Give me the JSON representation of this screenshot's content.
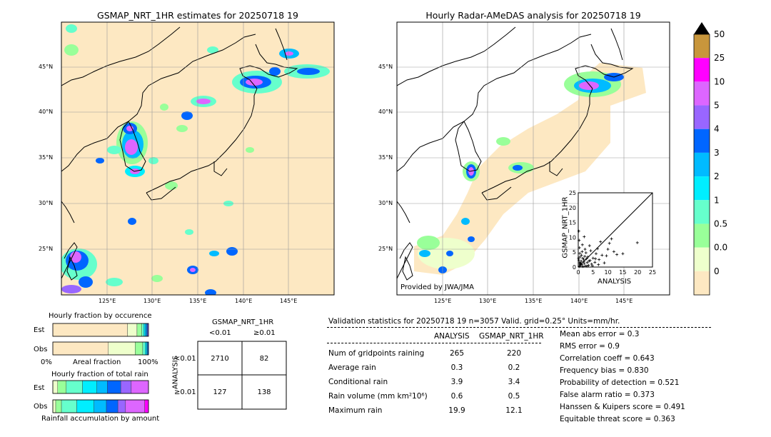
{
  "left_map": {
    "title": "GSMAP_NRT_1HR estimates for 20250718 19",
    "lat_labels": [
      "45°N",
      "40°N",
      "35°N",
      "30°N",
      "25°N"
    ],
    "lon_labels": [
      "125°E",
      "130°E",
      "135°E",
      "140°E",
      "145°E"
    ]
  },
  "right_map": {
    "title": "Hourly Radar-AMeDAS analysis for 20250718 19",
    "lat_labels": [
      "45°N",
      "40°N",
      "35°N",
      "30°N",
      "25°N"
    ],
    "lon_labels": [
      "125°E",
      "130°E",
      "135°E",
      "140°E",
      "145°E"
    ],
    "credit": "Provided by JWA/JMA"
  },
  "colorbar": {
    "labels": [
      "50",
      "25",
      "10",
      "5",
      "4",
      "3",
      "2",
      "1",
      "0.5",
      "0.01",
      "0"
    ],
    "colors": [
      "#c8963c",
      "#ff00ff",
      "#dd66ff",
      "#9966ff",
      "#0066ff",
      "#00bbff",
      "#00eeff",
      "#66ffcc",
      "#99ff99",
      "#eeffcc",
      "#fde8c2"
    ]
  },
  "chart_data": [
    {
      "type": "scatter",
      "xlabel": "ANALYSIS",
      "ylabel": "GSMAP_NRT_1HR",
      "xlim": [
        0,
        25
      ],
      "ylim": [
        0,
        25
      ],
      "xticks": [
        "0",
        "5",
        "10",
        "15",
        "20",
        "25"
      ],
      "yticks": [
        "0",
        "5",
        "10",
        "15",
        "20",
        "25"
      ],
      "points": [
        [
          0.3,
          0.2
        ],
        [
          0.5,
          1.1
        ],
        [
          0.8,
          0.5
        ],
        [
          1.0,
          2.0
        ],
        [
          1.2,
          0.8
        ],
        [
          1.5,
          3.0
        ],
        [
          0.4,
          1.6
        ],
        [
          2.0,
          1.2
        ],
        [
          2.4,
          0.4
        ],
        [
          1.8,
          2.6
        ],
        [
          0.6,
          3.4
        ],
        [
          3.0,
          1.5
        ],
        [
          2.8,
          2.8
        ],
        [
          3.5,
          0.6
        ],
        [
          1.1,
          4.0
        ],
        [
          4.0,
          2.2
        ],
        [
          0.2,
          2.4
        ],
        [
          2.2,
          3.6
        ],
        [
          0.9,
          1.4
        ],
        [
          1.6,
          0.2
        ],
        [
          3.2,
          3.4
        ],
        [
          4.5,
          1.0
        ],
        [
          0.5,
          4.6
        ],
        [
          5.0,
          3.0
        ],
        [
          2.6,
          4.8
        ],
        [
          5.6,
          1.6
        ],
        [
          6.0,
          4.5
        ],
        [
          4.2,
          5.5
        ],
        [
          1.3,
          5.2
        ],
        [
          7.0,
          2.5
        ],
        [
          6.5,
          6.2
        ],
        [
          3.8,
          7.2
        ],
        [
          8.0,
          4.0
        ],
        [
          9.5,
          3.8
        ],
        [
          10.0,
          6.0
        ],
        [
          12.0,
          5.2
        ],
        [
          7.5,
          8.5
        ],
        [
          13.0,
          4.2
        ],
        [
          0.3,
          9.0
        ],
        [
          2.0,
          10.2
        ],
        [
          15.0,
          4.5
        ],
        [
          19.9,
          8.2
        ],
        [
          8.8,
          1.4
        ],
        [
          0.7,
          0.9
        ],
        [
          1.9,
          1.9
        ],
        [
          2.9,
          0.3
        ],
        [
          3.6,
          2.0
        ],
        [
          0.1,
          3.0
        ],
        [
          4.8,
          0.4
        ],
        [
          5.8,
          2.8
        ],
        [
          10.5,
          8.0
        ],
        [
          11.2,
          9.5
        ],
        [
          6.8,
          0.8
        ],
        [
          0.4,
          6.5
        ],
        [
          1.4,
          7.5
        ],
        [
          2.3,
          6.0
        ],
        [
          0.2,
          12.1
        ]
      ]
    },
    {
      "type": "bar",
      "title": "Hourly fraction by occurence",
      "categories": [
        "Est",
        "Obs"
      ],
      "xlabel": "Areal fraction",
      "xticks": [
        "0%",
        "100%"
      ],
      "segments": [
        [
          {
            "v": 0.78,
            "c": "#fde8c2"
          },
          {
            "v": 0.1,
            "c": "#eeffcc"
          },
          {
            "v": 0.05,
            "c": "#99ff99"
          },
          {
            "v": 0.02,
            "c": "#66ffcc"
          },
          {
            "v": 0.015,
            "c": "#00eeff"
          },
          {
            "v": 0.015,
            "c": "#00bbff"
          },
          {
            "v": 0.01,
            "c": "#0066ff"
          },
          {
            "v": 0.01,
            "c": "#9966ff"
          }
        ],
        [
          {
            "v": 0.58,
            "c": "#fde8c2"
          },
          {
            "v": 0.28,
            "c": "#eeffcc"
          },
          {
            "v": 0.08,
            "c": "#99ff99"
          },
          {
            "v": 0.025,
            "c": "#66ffcc"
          },
          {
            "v": 0.015,
            "c": "#00eeff"
          },
          {
            "v": 0.01,
            "c": "#00bbff"
          },
          {
            "v": 0.01,
            "c": "#0066ff"
          }
        ]
      ]
    },
    {
      "type": "bar",
      "title": "Hourly fraction of total rain",
      "categories": [
        "Est",
        "Obs"
      ],
      "xlabel": "Rainfall accumulation by amount",
      "segments": [
        [
          {
            "v": 0.05,
            "c": "#eeffcc"
          },
          {
            "v": 0.09,
            "c": "#99ff99"
          },
          {
            "v": 0.17,
            "c": "#66ffcc"
          },
          {
            "v": 0.15,
            "c": "#00eeff"
          },
          {
            "v": 0.11,
            "c": "#00bbff"
          },
          {
            "v": 0.14,
            "c": "#0066ff"
          },
          {
            "v": 0.11,
            "c": "#9966ff"
          },
          {
            "v": 0.18,
            "c": "#dd66ff"
          }
        ],
        [
          {
            "v": 0.03,
            "c": "#eeffcc"
          },
          {
            "v": 0.06,
            "c": "#99ff99"
          },
          {
            "v": 0.16,
            "c": "#66ffcc"
          },
          {
            "v": 0.18,
            "c": "#00eeff"
          },
          {
            "v": 0.13,
            "c": "#00bbff"
          },
          {
            "v": 0.12,
            "c": "#0066ff"
          },
          {
            "v": 0.08,
            "c": "#9966ff"
          },
          {
            "v": 0.2,
            "c": "#dd66ff"
          },
          {
            "v": 0.04,
            "c": "#ff00ff"
          }
        ]
      ]
    }
  ],
  "contingency": {
    "title": "GSMAP_NRT_1HR",
    "col_labels": [
      "<0.01",
      "≥0.01"
    ],
    "row_axis_label": "ANALYSIS",
    "row_labels": [
      "<0.01",
      "≥0.01"
    ],
    "cells": [
      [
        "2710",
        "82"
      ],
      [
        "127",
        "138"
      ]
    ]
  },
  "validation": {
    "header": "Validation statistics for 20250718 19  n=3057 Valid. grid=0.25° Units=mm/hr.",
    "col_analysis": "ANALYSIS",
    "col_gsmap": "GSMAP_NRT_1HR",
    "rows": [
      {
        "label": "Num of gridpoints raining",
        "analysis": "265",
        "gsmap": "220"
      },
      {
        "label": "Average rain",
        "analysis": "0.3",
        "gsmap": "0.2"
      },
      {
        "label": "Conditional rain",
        "analysis": "3.9",
        "gsmap": "3.4"
      },
      {
        "label": "Rain volume (mm km²10⁶)",
        "analysis": "0.6",
        "gsmap": "0.5"
      },
      {
        "label": "Maximum rain",
        "analysis": "19.9",
        "gsmap": "12.1"
      }
    ],
    "scores": [
      "Mean abs error =    0.3",
      "RMS error =    0.9",
      "Correlation coeff =  0.643",
      "Frequency bias =  0.830",
      "Probability of detection =  0.521",
      "False alarm ratio =  0.373",
      "Hanssen & Kuipers score =  0.491",
      "Equitable threat score =  0.363"
    ]
  }
}
